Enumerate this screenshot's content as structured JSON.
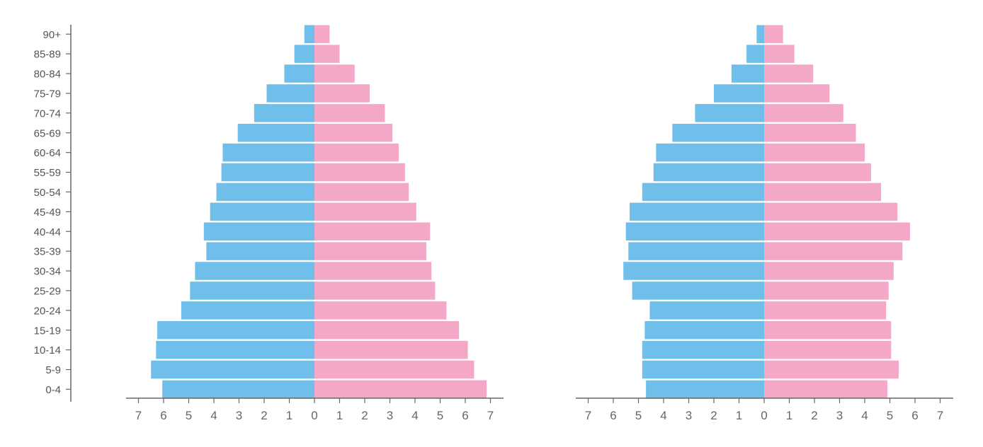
{
  "chart_data": [
    {
      "type": "bar",
      "orientation": "horizontal",
      "subtype": "population-pyramid",
      "categories": [
        "0-4",
        "5-9",
        "10-14",
        "15-19",
        "20-24",
        "25-29",
        "30-34",
        "35-39",
        "40-44",
        "45-49",
        "50-54",
        "55-59",
        "60-64",
        "65-69",
        "70-74",
        "75-79",
        "80-84",
        "85-89",
        "90+"
      ],
      "series": [
        {
          "color": "#6fbfea",
          "side": "left",
          "values": [
            6.05,
            6.5,
            6.3,
            6.25,
            5.3,
            4.95,
            4.75,
            4.3,
            4.4,
            4.15,
            3.9,
            3.7,
            3.65,
            3.05,
            2.4,
            1.9,
            1.2,
            0.8,
            0.4
          ]
        },
        {
          "color": "#f4a8c8",
          "side": "right",
          "values": [
            6.85,
            6.35,
            6.1,
            5.75,
            5.25,
            4.8,
            4.65,
            4.45,
            4.6,
            4.05,
            3.75,
            3.6,
            3.35,
            3.1,
            2.8,
            2.2,
            1.6,
            1.0,
            0.6
          ]
        }
      ],
      "xlim": [
        0,
        7
      ],
      "xticks": [
        "7",
        "6",
        "5",
        "4",
        "3",
        "2",
        "1",
        "0",
        "1",
        "2",
        "3",
        "4",
        "5",
        "6",
        "7"
      ]
    },
    {
      "type": "bar",
      "orientation": "horizontal",
      "subtype": "population-pyramid",
      "categories": [
        "0-4",
        "5-9",
        "10-14",
        "15-19",
        "20-24",
        "25-29",
        "30-34",
        "35-39",
        "40-44",
        "45-49",
        "50-54",
        "55-59",
        "60-64",
        "65-69",
        "70-74",
        "75-79",
        "80-84",
        "85-89",
        "90+"
      ],
      "series": [
        {
          "color": "#6fbfea",
          "side": "left",
          "values": [
            4.7,
            4.85,
            4.85,
            4.75,
            4.55,
            5.25,
            5.6,
            5.4,
            5.5,
            5.35,
            4.85,
            4.4,
            4.3,
            3.65,
            2.75,
            2.0,
            1.3,
            0.7,
            0.3
          ]
        },
        {
          "color": "#f4a8c8",
          "side": "right",
          "values": [
            4.9,
            5.35,
            5.05,
            5.05,
            4.85,
            4.95,
            5.15,
            5.5,
            5.8,
            5.3,
            4.65,
            4.25,
            4.0,
            3.65,
            3.15,
            2.6,
            1.95,
            1.2,
            0.75
          ]
        }
      ],
      "xlim": [
        0,
        7
      ],
      "xticks": [
        "7",
        "6",
        "5",
        "4",
        "3",
        "2",
        "1",
        "0",
        "1",
        "2",
        "3",
        "4",
        "5",
        "6",
        "7"
      ]
    }
  ]
}
